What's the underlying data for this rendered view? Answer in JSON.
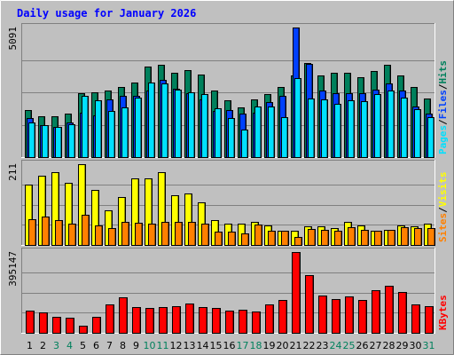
{
  "colors": {
    "background": "#c0c0c0",
    "title": "#0000ff",
    "hits": "#00805c",
    "files": "#0040ff",
    "pages": "#00e0ff",
    "visits": "#ffff00",
    "sites": "#ff8000",
    "kbytes": "#ff0000",
    "weekday": "#000000",
    "weekend": "#00805c",
    "gridline": "#808080"
  },
  "chart_data": {
    "type": "bar",
    "title": "Daily usage for January 2026",
    "categories": [
      "1",
      "2",
      "3",
      "4",
      "5",
      "6",
      "7",
      "8",
      "9",
      "10",
      "11",
      "12",
      "13",
      "14",
      "15",
      "16",
      "17",
      "18",
      "19",
      "20",
      "21",
      "22",
      "23",
      "24",
      "25",
      "26",
      "27",
      "28",
      "29",
      "30",
      "31"
    ],
    "weekend_days": [
      "3",
      "4",
      "10",
      "11",
      "17",
      "18",
      "24",
      "25",
      "31"
    ],
    "panels": [
      {
        "id": "top",
        "ymax": 5091,
        "ymax_label": "5091",
        "labels": [
          "Pages",
          "Files",
          "Hits"
        ],
        "series": [
          {
            "name": "Hits",
            "values": [
              1850,
              1620,
              1620,
              1720,
              2500,
              2550,
              2600,
              2760,
              2920,
              3560,
              3630,
              3320,
              3400,
              3260,
              2600,
              2240,
              1950,
              2270,
              2470,
              2750,
              3210,
              3700,
              3200,
              3310,
              3310,
              3150,
              3390,
              3640,
              3210,
              2760,
              2300
            ]
          },
          {
            "name": "Files",
            "values": [
              1540,
              1240,
              1200,
              1360,
              1740,
              1640,
              2260,
              2400,
              2400,
              2600,
              3040,
              2700,
              2520,
              2270,
              1820,
              1860,
              1700,
              1760,
              2160,
              2400,
              5091,
              3670,
              2600,
              2500,
              2520,
              2520,
              2650,
              2880,
              2600,
              1980,
              1700
            ]
          },
          {
            "name": "Pages",
            "values": [
              1360,
              1240,
              1200,
              1290,
              2390,
              2230,
              1820,
              1960,
              2320,
              2920,
              2900,
              2660,
              2540,
              2460,
              1930,
              1550,
              1070,
              1980,
              2000,
              1570,
              3120,
              2300,
              2270,
              2100,
              2230,
              2200,
              2460,
              2620,
              2330,
              1880,
              1580
            ]
          }
        ]
      },
      {
        "id": "middle",
        "ymax": 211,
        "ymax_label": "211",
        "labels": [
          "Sites",
          "Visits"
        ],
        "series": [
          {
            "name": "Visits",
            "values": [
              158,
              180,
              189,
              163,
              211,
              143,
              91,
              126,
              175,
              173,
              190,
              130,
              134,
              111,
              64,
              56,
              56,
              60,
              50,
              38,
              36,
              48,
              48,
              45,
              60,
              50,
              36,
              40,
              50,
              48,
              56
            ]
          },
          {
            "name": "Sites",
            "values": [
              67,
              75,
              65,
              56,
              79,
              50,
              45,
              60,
              58,
              56,
              60,
              60,
              60,
              56,
              34,
              35,
              30,
              53,
              38,
              36,
              22,
              42,
              40,
              36,
              46,
              40,
              36,
              40,
              47,
              44,
              44
            ]
          }
        ]
      },
      {
        "id": "bottom",
        "ymax": 395147,
        "ymax_label": "395147",
        "labels": [
          "KBytes"
        ],
        "series": [
          {
            "name": "KBytes",
            "values": [
              109000,
              100000,
              80000,
              72000,
              35000,
              76000,
              138000,
              172000,
              124000,
              120000,
              124000,
              129000,
              145000,
              124000,
              120000,
              108000,
              115000,
              104000,
              137000,
              160000,
              395000,
              282000,
              184000,
              163000,
              180000,
              162000,
              209000,
              231000,
              200000,
              138000,
              130000
            ]
          }
        ]
      }
    ]
  }
}
